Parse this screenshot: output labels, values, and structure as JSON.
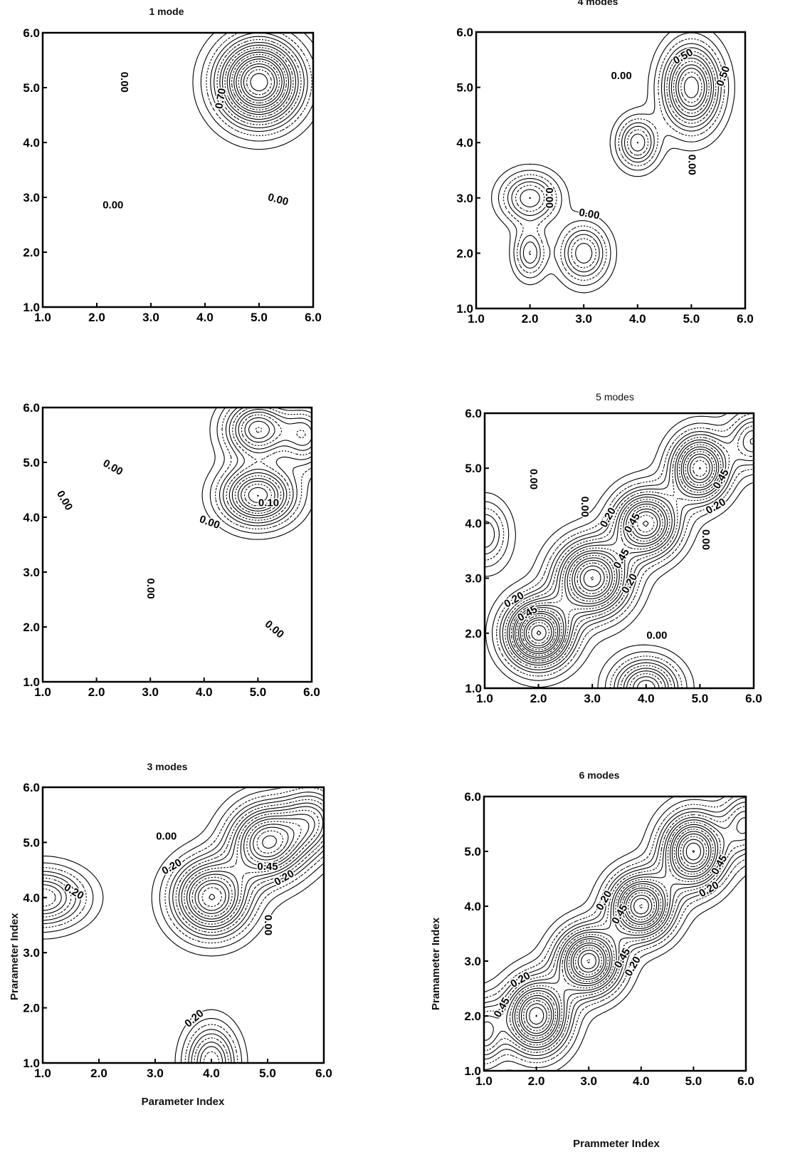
{
  "chart_data": [
    {
      "type": "contour",
      "title": "1 mode",
      "xlabel": "",
      "ylabel": "",
      "xlim": [
        1.0,
        6.0
      ],
      "ylim": [
        1.0,
        6.0
      ],
      "x_ticks": [
        "1.0",
        "2.0",
        "3.0",
        "4.0",
        "5.0",
        "6.0"
      ],
      "y_ticks": [
        "1.0",
        "2.0",
        "3.0",
        "4.0",
        "5.0",
        "6.0"
      ],
      "peaks": [
        {
          "x": 5.0,
          "y": 5.1,
          "amp": 1.0,
          "sx": 0.5,
          "sy": 0.5
        }
      ],
      "contour_labels": [
        {
          "text": "0.00",
          "x": 2.5,
          "y": 5.1,
          "rotate": 90
        },
        {
          "text": "0.70",
          "x": 4.3,
          "y": 4.8,
          "rotate": -80
        },
        {
          "text": "0.00",
          "x": 2.3,
          "y": 2.85,
          "rotate": 0
        },
        {
          "text": "0.00",
          "x": 5.35,
          "y": 2.95,
          "rotate": 15
        }
      ]
    },
    {
      "type": "contour",
      "title": "4 modes",
      "xlabel": "",
      "ylabel": "",
      "xlim": [
        1.0,
        6.0
      ],
      "ylim": [
        1.0,
        6.0
      ],
      "x_ticks": [
        "1.0",
        "2.0",
        "3.0",
        "4.0",
        "5.0",
        "6.0"
      ],
      "y_ticks": [
        "6.0",
        "5.0",
        "4.0",
        "3.0",
        "2.0",
        "1.0"
      ],
      "peaks": [
        {
          "x": 5.0,
          "y": 5.0,
          "amp": 0.7,
          "sx": 0.35,
          "sy": 0.5
        },
        {
          "x": 4.0,
          "y": 4.0,
          "amp": 0.4,
          "sx": 0.25,
          "sy": 0.3
        },
        {
          "x": 2.0,
          "y": 3.0,
          "amp": 0.4,
          "sx": 0.35,
          "sy": 0.3
        },
        {
          "x": 3.0,
          "y": 2.0,
          "amp": 0.4,
          "sx": 0.3,
          "sy": 0.35
        },
        {
          "x": 2.0,
          "y": 2.0,
          "amp": 0.3,
          "sx": 0.2,
          "sy": 0.3
        }
      ],
      "contour_labels": [
        {
          "text": "0.50",
          "x": 4.85,
          "y": 5.55,
          "rotate": -30
        },
        {
          "text": "0.50",
          "x": 5.6,
          "y": 5.2,
          "rotate": -70
        },
        {
          "text": "0.00",
          "x": 3.7,
          "y": 5.2,
          "rotate": 0
        },
        {
          "text": "0.00",
          "x": 2.35,
          "y": 3.0,
          "rotate": 90
        },
        {
          "text": "0.00",
          "x": 3.1,
          "y": 2.7,
          "rotate": 10
        },
        {
          "text": "0.00",
          "x": 5.0,
          "y": 3.6,
          "rotate": 90
        }
      ]
    },
    {
      "type": "contour",
      "title": "",
      "xlabel": "",
      "ylabel": "",
      "xlim": [
        1.0,
        6.0
      ],
      "ylim": [
        1.0,
        6.0
      ],
      "x_ticks": [
        "1.0",
        "2.0",
        "3.0",
        "4.0",
        "5.0",
        "6.0"
      ],
      "y_ticks": [
        "1.0",
        "2.0",
        "3.0",
        "4.0",
        "5.0",
        "6.0"
      ],
      "peaks": [
        {
          "x": 5.0,
          "y": 4.4,
          "amp": 0.7,
          "sx": 0.45,
          "sy": 0.35
        },
        {
          "x": 5.0,
          "y": 5.6,
          "amp": 0.6,
          "sx": 0.4,
          "sy": 0.35
        },
        {
          "x": 5.9,
          "y": 5.5,
          "amp": 0.4,
          "sx": 0.3,
          "sy": 0.4
        }
      ],
      "contour_labels": [
        {
          "text": "0.00",
          "x": 2.3,
          "y": 4.9,
          "rotate": 30
        },
        {
          "text": "0.00",
          "x": 1.4,
          "y": 4.3,
          "rotate": 60
        },
        {
          "text": "0.10",
          "x": 5.2,
          "y": 4.25,
          "rotate": 0
        },
        {
          "text": "0.00",
          "x": 4.1,
          "y": 3.9,
          "rotate": 20
        },
        {
          "text": "0.00",
          "x": 3.0,
          "y": 2.7,
          "rotate": 90
        },
        {
          "text": "0.00",
          "x": 5.3,
          "y": 1.95,
          "rotate": 40
        }
      ]
    },
    {
      "type": "contour",
      "title": "5 modes",
      "xlabel": "",
      "ylabel": "",
      "xlim": [
        1.0,
        6.0
      ],
      "ylim": [
        1.0,
        6.0
      ],
      "x_ticks": [
        "1.0",
        "2.0",
        "3.0",
        "4.0",
        "5.0",
        "6.0"
      ],
      "y_ticks": [
        "6.0",
        "5.0",
        "4.0",
        "3.0",
        "2.0",
        "1.0"
      ],
      "peaks": [
        {
          "x": 2.0,
          "y": 2.0,
          "amp": 1.0,
          "sx": 0.4,
          "sy": 0.4
        },
        {
          "x": 3.0,
          "y": 3.0,
          "amp": 0.9,
          "sx": 0.45,
          "sy": 0.45
        },
        {
          "x": 4.0,
          "y": 4.0,
          "amp": 0.8,
          "sx": 0.4,
          "sy": 0.4
        },
        {
          "x": 5.0,
          "y": 5.0,
          "amp": 0.8,
          "sx": 0.35,
          "sy": 0.4
        },
        {
          "x": 4.0,
          "y": 1.0,
          "amp": 0.6,
          "sx": 0.4,
          "sy": 0.35
        },
        {
          "x": 1.0,
          "y": 3.8,
          "amp": 0.3,
          "sx": 0.3,
          "sy": 0.4
        },
        {
          "x": 6.0,
          "y": 5.5,
          "amp": 0.4,
          "sx": 0.3,
          "sy": 0.35
        }
      ],
      "contour_labels": [
        {
          "text": "0.00",
          "x": 1.9,
          "y": 4.8,
          "rotate": 90
        },
        {
          "text": "0.00",
          "x": 2.85,
          "y": 4.3,
          "rotate": 90
        },
        {
          "text": "0.20",
          "x": 3.3,
          "y": 4.1,
          "rotate": -60
        },
        {
          "text": "0.45",
          "x": 3.75,
          "y": 4.0,
          "rotate": -60
        },
        {
          "text": "0.45",
          "x": 3.55,
          "y": 3.35,
          "rotate": -60
        },
        {
          "text": "0.20",
          "x": 3.7,
          "y": 2.9,
          "rotate": -60
        },
        {
          "text": "0.45",
          "x": 5.4,
          "y": 4.8,
          "rotate": -60
        },
        {
          "text": "0.20",
          "x": 5.3,
          "y": 4.3,
          "rotate": -30
        },
        {
          "text": "0.00",
          "x": 5.1,
          "y": 3.7,
          "rotate": 90
        },
        {
          "text": "0.20",
          "x": 1.55,
          "y": 2.6,
          "rotate": -30
        },
        {
          "text": "0.45",
          "x": 1.8,
          "y": 2.35,
          "rotate": -30
        },
        {
          "text": "0.00",
          "x": 4.2,
          "y": 1.95,
          "rotate": 0
        }
      ]
    },
    {
      "type": "contour",
      "title": "3 modes",
      "xlabel": "Parameter Index",
      "ylabel": "Prarameter Index",
      "xlim": [
        1.0,
        6.0
      ],
      "ylim": [
        1.0,
        6.0
      ],
      "x_ticks": [
        "1.0",
        "2.0",
        "3.0",
        "4.0",
        "5.0",
        "6.0"
      ],
      "y_ticks": [
        "1.0",
        "2.0",
        "3.0",
        "4.0",
        "5.0",
        "6.0"
      ],
      "peaks": [
        {
          "x": 4.0,
          "y": 4.0,
          "amp": 0.8,
          "sx": 0.45,
          "sy": 0.45
        },
        {
          "x": 5.0,
          "y": 5.0,
          "amp": 0.8,
          "sx": 0.45,
          "sy": 0.45
        },
        {
          "x": 5.8,
          "y": 5.4,
          "amp": 0.4,
          "sx": 0.35,
          "sy": 0.4
        },
        {
          "x": 1.0,
          "y": 4.0,
          "amp": 0.5,
          "sx": 0.5,
          "sy": 0.35
        },
        {
          "x": 4.0,
          "y": 1.0,
          "amp": 0.5,
          "sx": 0.3,
          "sy": 0.45
        }
      ],
      "contour_labels": [
        {
          "text": "0.00",
          "x": 3.2,
          "y": 5.1,
          "rotate": 0
        },
        {
          "text": "0.20",
          "x": 3.3,
          "y": 4.55,
          "rotate": -30
        },
        {
          "text": "0.20",
          "x": 1.55,
          "y": 4.1,
          "rotate": 30
        },
        {
          "text": "0.45",
          "x": 5.0,
          "y": 4.55,
          "rotate": 0
        },
        {
          "text": "0.20",
          "x": 5.3,
          "y": 4.35,
          "rotate": -30
        },
        {
          "text": "0.00",
          "x": 5.0,
          "y": 3.5,
          "rotate": 90
        },
        {
          "text": "0.20",
          "x": 3.7,
          "y": 1.8,
          "rotate": -40
        }
      ]
    },
    {
      "type": "contour",
      "title": "6 modes",
      "xlabel": "Prammeter Index",
      "ylabel": "Pramameter Index",
      "xlim": [
        1.0,
        6.0
      ],
      "ylim": [
        1.0,
        6.0
      ],
      "x_ticks": [
        "1.0",
        "2.0",
        "3.0",
        "4.0",
        "5.0",
        "6.0"
      ],
      "y_ticks": [
        "1.0",
        "2.0",
        "3.0",
        "4.0",
        "5.0",
        "6.0"
      ],
      "peaks": [
        {
          "x": 2.0,
          "y": 2.0,
          "amp": 0.9,
          "sx": 0.4,
          "sy": 0.45
        },
        {
          "x": 3.0,
          "y": 3.0,
          "amp": 0.9,
          "sx": 0.4,
          "sy": 0.4
        },
        {
          "x": 4.0,
          "y": 4.0,
          "amp": 0.9,
          "sx": 0.4,
          "sy": 0.4
        },
        {
          "x": 5.0,
          "y": 5.0,
          "amp": 0.9,
          "sx": 0.4,
          "sy": 0.45
        },
        {
          "x": 1.0,
          "y": 1.7,
          "amp": 0.4,
          "sx": 0.25,
          "sy": 0.4
        },
        {
          "x": 6.0,
          "y": 5.5,
          "amp": 0.4,
          "sx": 0.3,
          "sy": 0.4
        }
      ],
      "contour_labels": [
        {
          "text": "0.20",
          "x": 3.3,
          "y": 4.1,
          "rotate": -60
        },
        {
          "text": "0.45",
          "x": 3.6,
          "y": 3.85,
          "rotate": -60
        },
        {
          "text": "0.45",
          "x": 3.65,
          "y": 3.05,
          "rotate": -60
        },
        {
          "text": "0.20",
          "x": 3.85,
          "y": 2.9,
          "rotate": -60
        },
        {
          "text": "0.45",
          "x": 5.5,
          "y": 4.75,
          "rotate": -60
        },
        {
          "text": "0.20",
          "x": 5.3,
          "y": 4.3,
          "rotate": -30
        },
        {
          "text": "0.20",
          "x": 1.7,
          "y": 2.65,
          "rotate": -30
        },
        {
          "text": "0.45",
          "x": 1.35,
          "y": 2.15,
          "rotate": -60
        }
      ]
    }
  ]
}
